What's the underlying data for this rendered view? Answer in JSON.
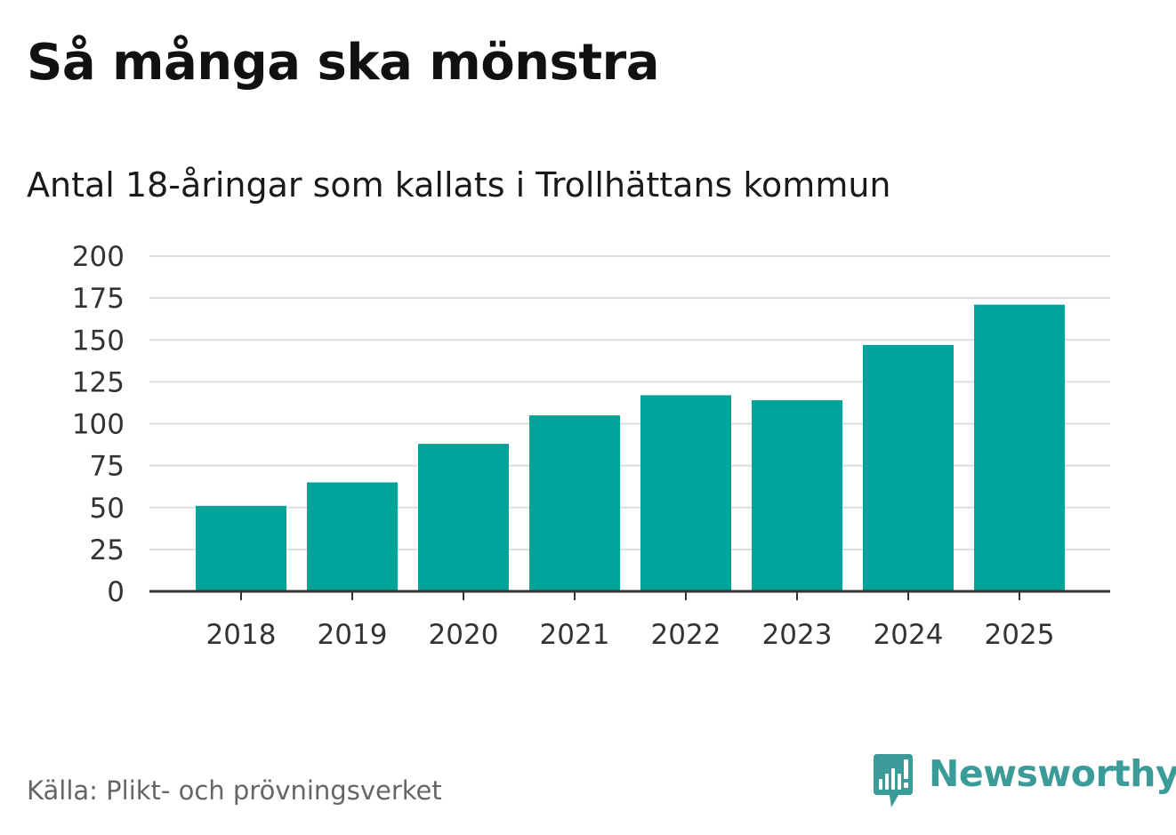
{
  "title": "Så många ska mönstra",
  "subtitle": "Antal 18-åringar som kallats i Trollhättans kommun",
  "source": "Källa: Plikt- och prövningsverket",
  "brand": {
    "name": "Newsworthy",
    "icon": "newsworthy-logo-icon",
    "color": "#3a9b98"
  },
  "colors": {
    "bar": "#00a39a",
    "grid": "#dddddd",
    "axis": "#333333"
  },
  "chart_data": {
    "type": "bar",
    "categories": [
      "2018",
      "2019",
      "2020",
      "2021",
      "2022",
      "2023",
      "2024",
      "2025"
    ],
    "values": [
      51,
      65,
      88,
      105,
      117,
      114,
      147,
      171
    ],
    "title": "Så många ska mönstra",
    "subtitle": "Antal 18-åringar som kallats i Trollhättans kommun",
    "xlabel": "",
    "ylabel": "",
    "ylim": [
      0,
      200
    ],
    "yticks": [
      0,
      25,
      50,
      75,
      100,
      125,
      150,
      175,
      200
    ],
    "grid": true,
    "legend": "none"
  }
}
